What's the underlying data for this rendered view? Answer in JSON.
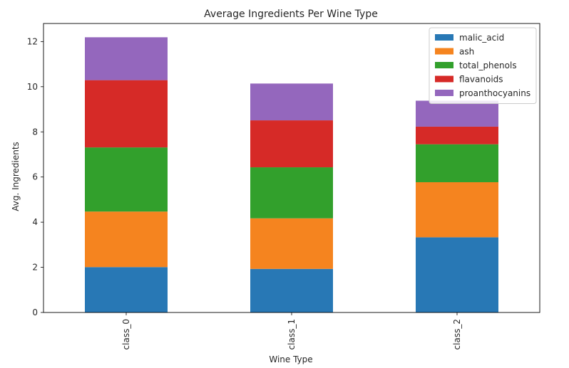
{
  "chart_data": {
    "type": "bar",
    "stacked": true,
    "title": "Average Ingredients Per Wine Type",
    "xlabel": "Wine Type",
    "ylabel": "Avg. Ingredients",
    "categories": [
      "class_0",
      "class_1",
      "class_2"
    ],
    "ylim": [
      0,
      12.8
    ],
    "yticks": [
      0,
      2,
      4,
      6,
      8,
      10,
      12
    ],
    "legend_position": "top-right",
    "grid": false,
    "series": [
      {
        "name": "malic_acid",
        "color": "#2878b5",
        "values": [
          2.01,
          1.93,
          3.33
        ]
      },
      {
        "name": "ash",
        "color": "#f5841f",
        "values": [
          2.46,
          2.24,
          2.44
        ]
      },
      {
        "name": "total_phenols",
        "color": "#32a02c",
        "values": [
          2.84,
          2.26,
          1.68
        ]
      },
      {
        "name": "flavanoids",
        "color": "#d62a27",
        "values": [
          2.98,
          2.08,
          0.78
        ]
      },
      {
        "name": "proanthocyanins",
        "color": "#9467bd",
        "values": [
          1.9,
          1.63,
          1.15
        ]
      }
    ]
  }
}
